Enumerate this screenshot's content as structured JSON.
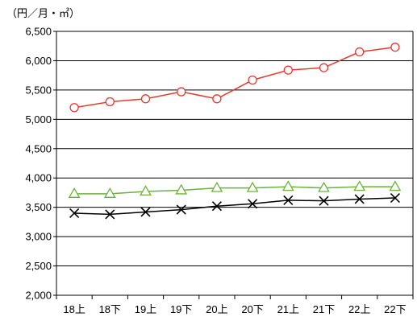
{
  "chart_data": {
    "type": "line",
    "ylabel": "（円／月・㎡）",
    "categories": [
      "18上",
      "18下",
      "19上",
      "19下",
      "20上",
      "20下",
      "21上",
      "21下",
      "22上",
      "22下"
    ],
    "ylim": [
      2000,
      6500
    ],
    "yticks": [
      2000,
      2500,
      3000,
      3500,
      4000,
      4500,
      5000,
      5500,
      6000,
      6500
    ],
    "ytick_labels": [
      "2,000",
      "2,500",
      "3,000",
      "3,500",
      "4,000",
      "4,500",
      "5,000",
      "5,500",
      "6,000",
      "6,500"
    ],
    "grid": "horizontal",
    "series": [
      {
        "color": "#e8392f",
        "marker": "circle",
        "values": [
          5200,
          5300,
          5350,
          5470,
          5350,
          5670,
          5840,
          5880,
          6150,
          6230
        ]
      },
      {
        "color": "#6ab33b",
        "marker": "triangle",
        "values": [
          3730,
          3730,
          3770,
          3790,
          3830,
          3830,
          3850,
          3830,
          3850,
          3850
        ]
      },
      {
        "color": "#000000",
        "marker": "x",
        "values": [
          3400,
          3380,
          3420,
          3460,
          3520,
          3560,
          3620,
          3610,
          3640,
          3660
        ]
      }
    ]
  }
}
